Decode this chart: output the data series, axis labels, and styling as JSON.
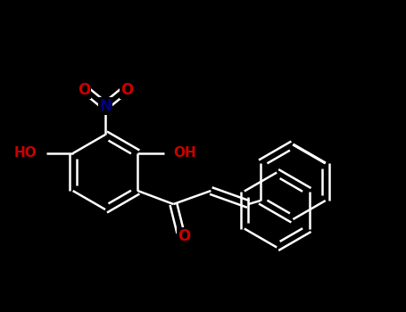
{
  "bg_color": "#000000",
  "bond_color": "#ffffff",
  "bond_width": 1.8,
  "atom_colors": {
    "O": "#cc0000",
    "N": "#000080",
    "C": "#ffffff"
  },
  "label_fontsize": 11
}
